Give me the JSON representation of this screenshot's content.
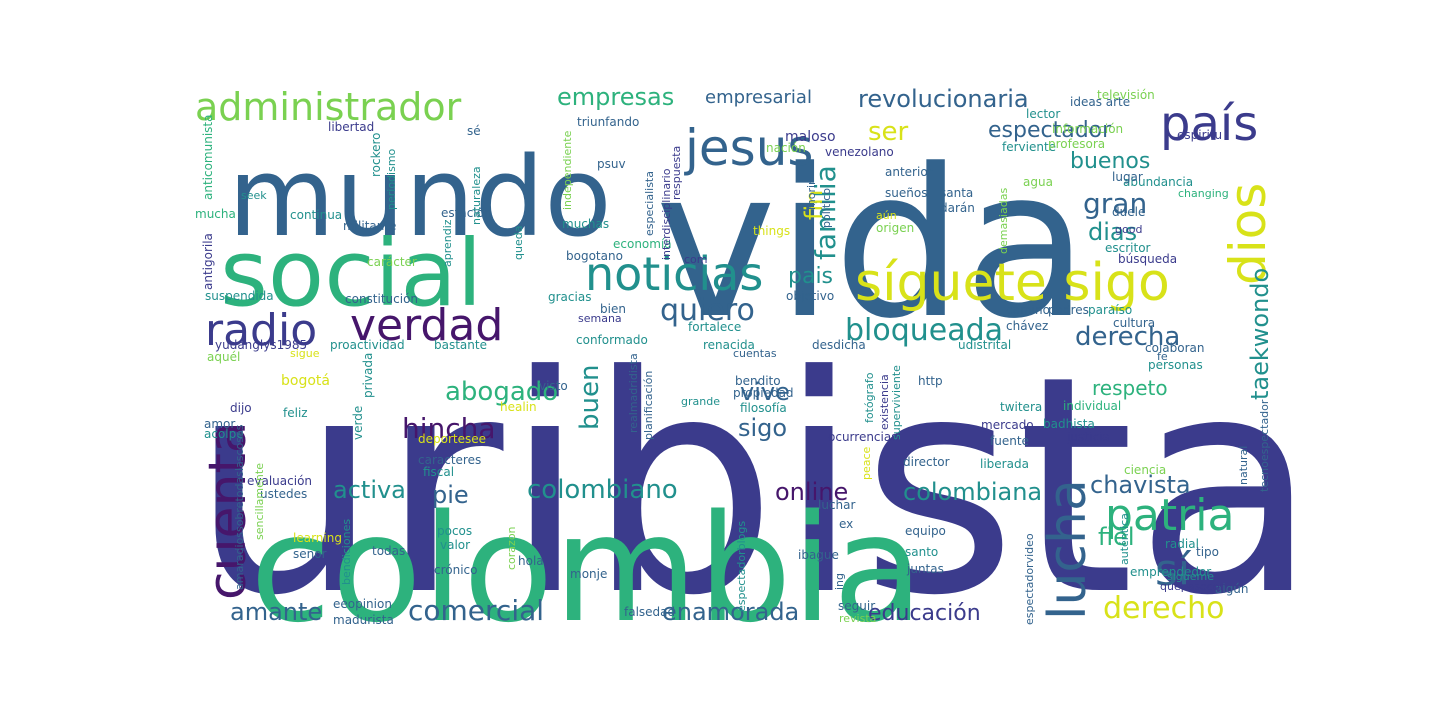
{
  "palette": {
    "navy": "#3b3b8c",
    "purple": "#46166b",
    "blue": "#33638d",
    "teal": "#21908d",
    "green": "#2db27d",
    "lime": "#7ad151",
    "yellow": "#d8e219"
  },
  "words": [
    {
      "text": "uribista",
      "color": "navy"
    },
    {
      "text": "vida",
      "color": "blue"
    },
    {
      "text": "colombia",
      "color": "green"
    },
    {
      "text": "mundo",
      "color": "blue"
    },
    {
      "text": "social",
      "color": "green"
    },
    {
      "text": "síguete sigo",
      "color": "yellow"
    },
    {
      "text": "noticias",
      "color": "teal"
    },
    {
      "text": "administrador",
      "color": "lime"
    },
    {
      "text": "jesus",
      "color": "blue"
    },
    {
      "text": "país",
      "color": "navy"
    },
    {
      "text": "dios",
      "color": "yellow"
    },
    {
      "text": "radio",
      "color": "navy"
    },
    {
      "text": "verdad",
      "color": "purple"
    },
    {
      "text": "patria",
      "color": "green"
    },
    {
      "text": "lucha",
      "color": "blue"
    },
    {
      "text": "cuenta",
      "color": "purple"
    },
    {
      "text": "sí",
      "color": "blue"
    },
    {
      "text": "bloqueada",
      "color": "teal"
    },
    {
      "text": "quiero",
      "color": "blue"
    },
    {
      "text": "empresas",
      "color": "green"
    },
    {
      "text": "revolucionaria",
      "color": "blue"
    },
    {
      "text": "ser",
      "color": "yellow"
    },
    {
      "text": "espectador",
      "color": "blue"
    },
    {
      "text": "buenos",
      "color": "teal"
    },
    {
      "text": "gran",
      "color": "blue"
    },
    {
      "text": "dias",
      "color": "teal"
    },
    {
      "text": "familia",
      "color": "teal"
    },
    {
      "text": "fin",
      "color": "yellow"
    },
    {
      "text": "pais",
      "color": "teal"
    },
    {
      "text": "derecha",
      "color": "blue"
    },
    {
      "text": "taekwondo",
      "color": "teal"
    },
    {
      "text": "abogado",
      "color": "green"
    },
    {
      "text": "buen",
      "color": "teal"
    },
    {
      "text": "hincha",
      "color": "purple"
    },
    {
      "text": "sigo",
      "color": "blue"
    },
    {
      "text": "vive",
      "color": "blue"
    },
    {
      "text": "respeto",
      "color": "green"
    },
    {
      "text": "activa",
      "color": "teal"
    },
    {
      "text": "colombiano",
      "color": "teal"
    },
    {
      "text": "online",
      "color": "purple"
    },
    {
      "text": "colombiana",
      "color": "teal"
    },
    {
      "text": "chavista",
      "color": "blue"
    },
    {
      "text": "pie",
      "color": "blue"
    },
    {
      "text": "fiel",
      "color": "green"
    },
    {
      "text": "derecho",
      "color": "yellow"
    },
    {
      "text": "comercial",
      "color": "blue"
    },
    {
      "text": "amante",
      "color": "blue"
    },
    {
      "text": "enamorada",
      "color": "blue"
    },
    {
      "text": "educación",
      "color": "navy"
    },
    {
      "text": "empresarial",
      "color": "blue"
    },
    {
      "text": "televisión",
      "color": "lime"
    },
    {
      "text": "ideas arte",
      "color": "blue"
    },
    {
      "text": "lector",
      "color": "teal"
    },
    {
      "text": "información",
      "color": "lime"
    },
    {
      "text": "espiritu",
      "color": "navy"
    },
    {
      "text": "ferviente",
      "color": "teal"
    },
    {
      "text": "profesora",
      "color": "lime"
    },
    {
      "text": "maloso",
      "color": "navy"
    },
    {
      "text": "venezolano",
      "color": "navy"
    },
    {
      "text": "nación",
      "color": "lime"
    },
    {
      "text": "triunfando",
      "color": "blue"
    },
    {
      "text": "libertad",
      "color": "navy"
    },
    {
      "text": "sé",
      "color": "blue"
    },
    {
      "text": "anterior",
      "color": "blue"
    },
    {
      "text": "agua",
      "color": "lime"
    },
    {
      "text": "abundancia",
      "color": "teal"
    },
    {
      "text": "changing",
      "color": "green"
    },
    {
      "text": "lugar",
      "color": "blue"
    },
    {
      "text": "sueños",
      "color": "blue"
    },
    {
      "text": "santa",
      "color": "blue"
    },
    {
      "text": "darán",
      "color": "blue"
    },
    {
      "text": "duele",
      "color": "blue"
    },
    {
      "text": "good",
      "color": "navy"
    },
    {
      "text": "escritor",
      "color": "teal"
    },
    {
      "text": "búsqueda",
      "color": "navy"
    },
    {
      "text": "aún",
      "color": "yellow"
    },
    {
      "text": "origen",
      "color": "lime"
    },
    {
      "text": "things",
      "color": "yellow"
    },
    {
      "text": "psuv",
      "color": "blue"
    },
    {
      "text": "seek",
      "color": "teal"
    },
    {
      "text": "continua",
      "color": "teal"
    },
    {
      "text": "militante",
      "color": "blue"
    },
    {
      "text": "estación",
      "color": "blue"
    },
    {
      "text": "muchas",
      "color": "teal"
    },
    {
      "text": "economía",
      "color": "green"
    },
    {
      "text": "mucha",
      "color": "green"
    },
    {
      "text": "carácter",
      "color": "lime"
    },
    {
      "text": "bogotano",
      "color": "blue"
    },
    {
      "text": "com",
      "color": "navy"
    },
    {
      "text": "constitución",
      "color": "blue"
    },
    {
      "text": "suspendida",
      "color": "teal"
    },
    {
      "text": "gracias",
      "color": "teal"
    },
    {
      "text": "bien",
      "color": "blue"
    },
    {
      "text": "semana",
      "color": "navy"
    },
    {
      "text": "objetivo",
      "color": "blue"
    },
    {
      "text": "camino",
      "color": "blue"
    },
    {
      "text": "padres",
      "color": "blue"
    },
    {
      "text": "paraíso",
      "color": "teal"
    },
    {
      "text": "cultura",
      "color": "blue"
    },
    {
      "text": "chávez",
      "color": "blue"
    },
    {
      "text": "fortalece",
      "color": "teal"
    },
    {
      "text": "colaboran",
      "color": "blue"
    },
    {
      "text": "personas",
      "color": "teal"
    },
    {
      "text": "yudanglys1985",
      "color": "navy"
    },
    {
      "text": "proactividad",
      "color": "teal"
    },
    {
      "text": "bastante",
      "color": "teal"
    },
    {
      "text": "conformado",
      "color": "teal"
    },
    {
      "text": "renacida",
      "color": "teal"
    },
    {
      "text": "desdicha",
      "color": "blue"
    },
    {
      "text": "udistrital",
      "color": "teal"
    },
    {
      "text": "aquél",
      "color": "lime"
    },
    {
      "text": "sigue",
      "color": "yellow"
    },
    {
      "text": "cuentas",
      "color": "blue"
    },
    {
      "text": "fe",
      "color": "blue"
    },
    {
      "text": "bogotá",
      "color": "yellow"
    },
    {
      "text": "privada",
      "color": "teal"
    },
    {
      "text": "bendito",
      "color": "blue"
    },
    {
      "text": "propiedad",
      "color": "blue"
    },
    {
      "text": "filosofía",
      "color": "teal"
    },
    {
      "text": "http",
      "color": "blue"
    },
    {
      "text": "grande",
      "color": "teal"
    },
    {
      "text": "twitera",
      "color": "teal"
    },
    {
      "text": "individual",
      "color": "green"
    },
    {
      "text": "healin",
      "color": "yellow"
    },
    {
      "text": "dijo",
      "color": "navy"
    },
    {
      "text": "feliz",
      "color": "teal"
    },
    {
      "text": "amor",
      "color": "blue"
    },
    {
      "text": "acolpe",
      "color": "teal"
    },
    {
      "text": "verde",
      "color": "teal"
    },
    {
      "text": "deportesee",
      "color": "yellow"
    },
    {
      "text": "ocurrencias",
      "color": "navy"
    },
    {
      "text": "mercado",
      "color": "navy"
    },
    {
      "text": "badhista",
      "color": "teal"
    },
    {
      "text": "fuente",
      "color": "blue"
    },
    {
      "text": "justicia",
      "color": "navy"
    },
    {
      "text": "caracteres",
      "color": "blue"
    },
    {
      "text": "fiscal",
      "color": "teal"
    },
    {
      "text": "liberada",
      "color": "teal"
    },
    {
      "text": "evaluación",
      "color": "navy"
    },
    {
      "text": "ustedes",
      "color": "blue"
    },
    {
      "text": "learning",
      "color": "yellow"
    },
    {
      "text": "senor",
      "color": "blue"
    },
    {
      "text": "pocos",
      "color": "teal"
    },
    {
      "text": "valor",
      "color": "teal"
    },
    {
      "text": "todas",
      "color": "blue"
    },
    {
      "text": "hola",
      "color": "blue"
    },
    {
      "text": "crónico",
      "color": "blue"
    },
    {
      "text": "monje",
      "color": "blue"
    },
    {
      "text": "luchar",
      "color": "blue"
    },
    {
      "text": "ibague",
      "color": "blue"
    },
    {
      "text": "equipo",
      "color": "blue"
    },
    {
      "text": "ex",
      "color": "blue"
    },
    {
      "text": "santo",
      "color": "teal"
    },
    {
      "text": "juntas",
      "color": "blue"
    },
    {
      "text": "radial",
      "color": "teal"
    },
    {
      "text": "tipo",
      "color": "blue"
    },
    {
      "text": "emprendedor",
      "color": "teal"
    },
    {
      "text": "algún",
      "color": "blue"
    },
    {
      "text": "seguir",
      "color": "blue"
    },
    {
      "text": "revista",
      "color": "lime"
    },
    {
      "text": "falsedad",
      "color": "blue"
    },
    {
      "text": "eeopinion",
      "color": "blue"
    },
    {
      "text": "madurista",
      "color": "blue"
    },
    {
      "text": "director",
      "color": "blue"
    },
    {
      "text": "ciencia",
      "color": "lime"
    },
    {
      "text": "antigorila",
      "color": "navy"
    },
    {
      "text": "anticomunista",
      "color": "green"
    },
    {
      "text": "rockero",
      "color": "teal"
    },
    {
      "text": "periodismo",
      "color": "teal"
    },
    {
      "text": "aprendiz",
      "color": "teal"
    },
    {
      "text": "naturaleza",
      "color": "teal"
    },
    {
      "text": "queda",
      "color": "teal"
    },
    {
      "text": "independiente",
      "color": "lime"
    },
    {
      "text": "especialista",
      "color": "blue"
    },
    {
      "text": "interdisciplinario",
      "color": "navy"
    },
    {
      "text": "respuesta",
      "color": "navy"
    },
    {
      "text": "morir",
      "color": "blue"
    },
    {
      "text": "político",
      "color": "blue"
    },
    {
      "text": "demasiadas",
      "color": "lime"
    },
    {
      "text": "realmadridista",
      "color": "blue"
    },
    {
      "text": "planificación",
      "color": "blue"
    },
    {
      "text": "amaradiossobretodaslascosas",
      "color": "blue"
    },
    {
      "text": "sencillamente",
      "color": "lime"
    },
    {
      "text": "bendiciones",
      "color": "teal"
    },
    {
      "text": "corazon",
      "color": "lime"
    },
    {
      "text": "espectadorblogs",
      "color": "teal"
    },
    {
      "text": "peace",
      "color": "yellow"
    },
    {
      "text": "fotógrafo",
      "color": "teal"
    },
    {
      "text": "existencia",
      "color": "navy"
    },
    {
      "text": "superviviente",
      "color": "teal"
    },
    {
      "text": "natural",
      "color": "blue"
    },
    {
      "text": "tecnoespectador",
      "color": "blue"
    },
    {
      "text": "espectadorvideo",
      "color": "blue"
    },
    {
      "text": "auténtica",
      "color": "teal"
    },
    {
      "text": "sígueme",
      "color": "teal"
    },
    {
      "text": "quepasocon",
      "color": "navy"
    },
    {
      "text": "ing",
      "color": "blue"
    },
    {
      "text": "visto",
      "color": "blue"
    }
  ]
}
